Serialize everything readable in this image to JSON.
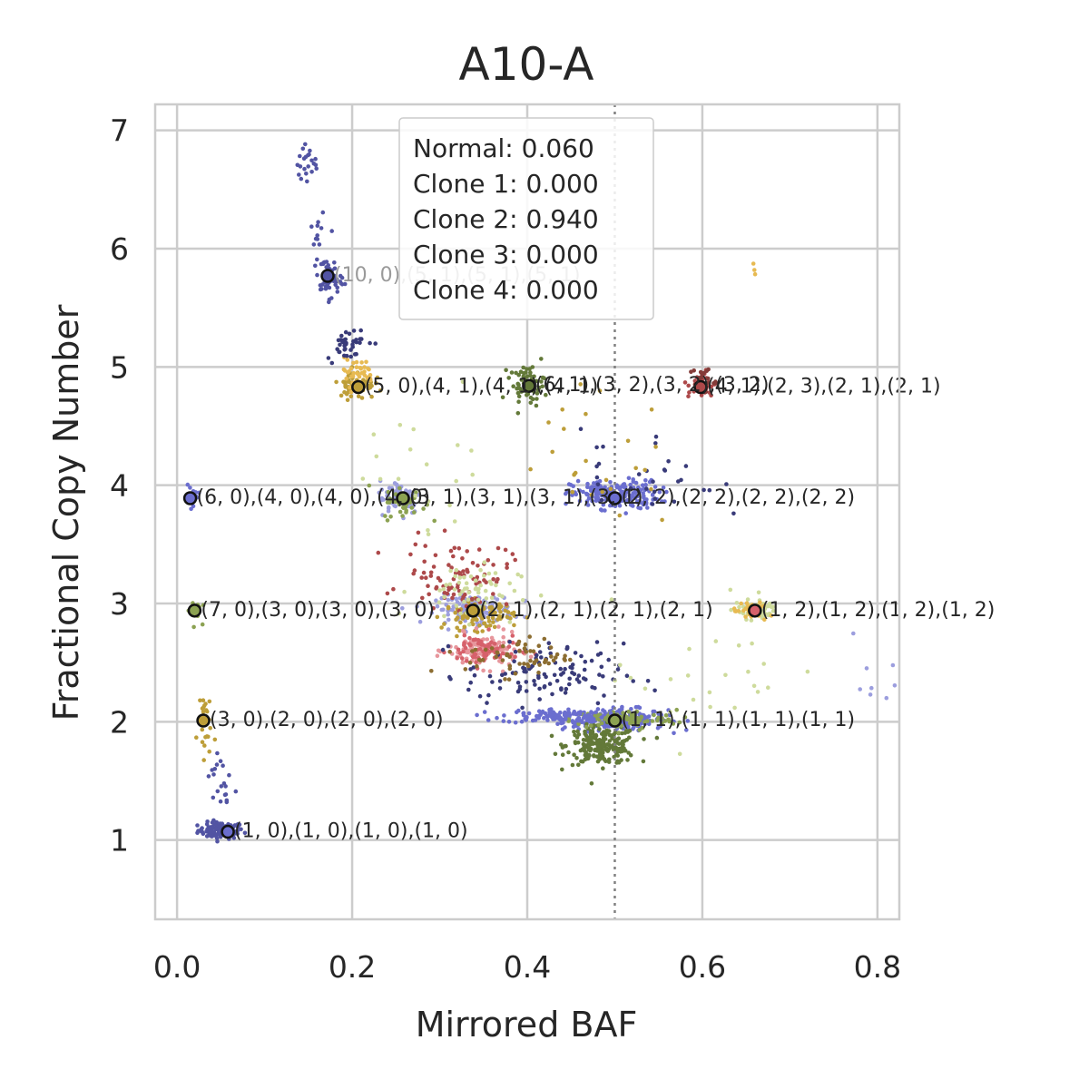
{
  "chart_data": {
    "type": "scatter",
    "title": "A10-A",
    "xlabel": "Mirrored BAF",
    "ylabel": "Fractional Copy Number",
    "xlim": [
      -0.025,
      0.825
    ],
    "ylim": [
      0.33,
      7.22
    ],
    "xticks": [
      "0.0",
      "0.2",
      "0.4",
      "0.6",
      "0.8"
    ],
    "yticks": [
      "1",
      "2",
      "3",
      "4",
      "5",
      "6",
      "7"
    ],
    "grid": true,
    "vline": 0.5,
    "legend": {
      "placement": "top-center",
      "lines": [
        "Normal: 0.060",
        "Clone 1: 0.000",
        "Clone 2: 0.940",
        "Clone 3: 0.000",
        "Clone 4: 0.000"
      ]
    },
    "clusters": [
      {
        "x": 0.05,
        "y": 1.08,
        "sx": 0.013,
        "sy": 0.035,
        "n": 100,
        "color": "#5254a3"
      },
      {
        "x": 0.5,
        "y": 2.02,
        "sx": 0.03,
        "sy": 0.045,
        "n": 240,
        "color": "#6b6ecf"
      },
      {
        "x": 0.485,
        "y": 1.8,
        "sx": 0.02,
        "sy": 0.08,
        "n": 220,
        "color": "#637939"
      },
      {
        "x": 0.51,
        "y": 2.02,
        "sx": 0.03,
        "sy": 0.04,
        "n": 100,
        "color": "#8ca252"
      },
      {
        "x": 0.43,
        "y": 2.05,
        "sx": 0.03,
        "sy": 0.03,
        "n": 90,
        "color": "#6b6ecf"
      },
      {
        "x": 0.5,
        "y": 3.92,
        "sx": 0.025,
        "sy": 0.06,
        "n": 200,
        "color": "#6b6ecf"
      },
      {
        "x": 0.34,
        "y": 2.95,
        "sx": 0.022,
        "sy": 0.06,
        "n": 140,
        "color": "#9c9ede"
      },
      {
        "x": 0.345,
        "y": 2.9,
        "sx": 0.02,
        "sy": 0.06,
        "n": 100,
        "color": "#bd9e39"
      },
      {
        "x": 0.35,
        "y": 2.6,
        "sx": 0.02,
        "sy": 0.07,
        "n": 110,
        "color": "#e7969c"
      },
      {
        "x": 0.35,
        "y": 2.6,
        "sx": 0.02,
        "sy": 0.07,
        "n": 70,
        "color": "#d6616b"
      },
      {
        "x": 0.32,
        "y": 3.25,
        "sx": 0.03,
        "sy": 0.14,
        "n": 90,
        "color": "#ad494a"
      },
      {
        "x": 0.33,
        "y": 3.1,
        "sx": 0.03,
        "sy": 0.12,
        "n": 60,
        "color": "#cedb9c"
      },
      {
        "x": 0.42,
        "y": 2.4,
        "sx": 0.045,
        "sy": 0.13,
        "n": 110,
        "color": "#393b79"
      },
      {
        "x": 0.39,
        "y": 2.55,
        "sx": 0.03,
        "sy": 0.08,
        "n": 60,
        "color": "#8c6d31"
      },
      {
        "x": 0.255,
        "y": 3.9,
        "sx": 0.012,
        "sy": 0.07,
        "n": 80,
        "color": "#9c9ede"
      },
      {
        "x": 0.26,
        "y": 3.85,
        "sx": 0.012,
        "sy": 0.07,
        "n": 40,
        "color": "#8ca252"
      },
      {
        "x": 0.205,
        "y": 4.85,
        "sx": 0.01,
        "sy": 0.06,
        "n": 70,
        "color": "#bd9e39"
      },
      {
        "x": 0.205,
        "y": 4.95,
        "sx": 0.01,
        "sy": 0.06,
        "n": 40,
        "color": "#e7ba52"
      },
      {
        "x": 0.195,
        "y": 5.2,
        "sx": 0.012,
        "sy": 0.07,
        "n": 40,
        "color": "#393b79"
      },
      {
        "x": 0.4,
        "y": 4.85,
        "sx": 0.01,
        "sy": 0.08,
        "n": 60,
        "color": "#637939"
      },
      {
        "x": 0.6,
        "y": 4.85,
        "sx": 0.008,
        "sy": 0.06,
        "n": 35,
        "color": "#ad494a"
      },
      {
        "x": 0.6,
        "y": 4.9,
        "sx": 0.008,
        "sy": 0.06,
        "n": 20,
        "color": "#843c39"
      },
      {
        "x": 0.172,
        "y": 5.75,
        "sx": 0.008,
        "sy": 0.08,
        "n": 50,
        "color": "#5254a3"
      },
      {
        "x": 0.15,
        "y": 6.7,
        "sx": 0.006,
        "sy": 0.08,
        "n": 22,
        "color": "#5254a3"
      },
      {
        "x": 0.16,
        "y": 6.2,
        "sx": 0.006,
        "sy": 0.12,
        "n": 10,
        "color": "#5254a3"
      },
      {
        "x": 0.018,
        "y": 3.9,
        "sx": 0.004,
        "sy": 0.08,
        "n": 15,
        "color": "#6b6ecf"
      },
      {
        "x": 0.02,
        "y": 2.95,
        "sx": 0.004,
        "sy": 0.05,
        "n": 20,
        "color": "#8ca252"
      },
      {
        "x": 0.03,
        "y": 2.0,
        "sx": 0.004,
        "sy": 0.15,
        "n": 25,
        "color": "#bd9e39"
      },
      {
        "x": 0.05,
        "y": 1.5,
        "sx": 0.01,
        "sy": 0.15,
        "n": 20,
        "color": "#5254a3"
      },
      {
        "x": 0.66,
        "y": 2.95,
        "sx": 0.012,
        "sy": 0.04,
        "n": 60,
        "color": "#cedb9c"
      },
      {
        "x": 0.655,
        "y": 2.93,
        "sx": 0.01,
        "sy": 0.04,
        "n": 30,
        "color": "#e7ba52"
      },
      {
        "x": 0.6,
        "y": 2.4,
        "sx": 0.05,
        "sy": 0.3,
        "n": 25,
        "color": "#cedb9c"
      },
      {
        "x": 0.54,
        "y": 4.1,
        "sx": 0.04,
        "sy": 0.2,
        "n": 30,
        "color": "#393b79"
      },
      {
        "x": 0.47,
        "y": 4.2,
        "sx": 0.05,
        "sy": 0.3,
        "n": 25,
        "color": "#bd9e39"
      },
      {
        "x": 0.3,
        "y": 4.2,
        "sx": 0.04,
        "sy": 0.3,
        "n": 20,
        "color": "#cedb9c"
      },
      {
        "x": 0.66,
        "y": 5.85,
        "sx": 0.002,
        "sy": 0.06,
        "n": 3,
        "color": "#e7ba52"
      },
      {
        "x": 0.8,
        "y": 2.3,
        "sx": 0.02,
        "sy": 0.3,
        "n": 10,
        "color": "#9c9ede"
      }
    ],
    "markers": [
      {
        "x": 0.172,
        "y": 5.77,
        "color": "#5254a3",
        "label": "(10, 0),(5, 1),(5, 1),(5, 1)",
        "label_color": "#9a9a9a"
      },
      {
        "x": 0.207,
        "y": 4.83,
        "color": "#bd9e39",
        "label": "(5, 0),(4, 1),(4, 1),(4, 1)",
        "label_color": "#262626"
      },
      {
        "x": 0.402,
        "y": 4.84,
        "color": "#637939",
        "label": "(6, 1),(3, 2),(3, 2),(3, 2)",
        "label_color": "#262626"
      },
      {
        "x": 0.598,
        "y": 4.83,
        "color": "#ad494a",
        "label": "(4, 1),(2, 3),(2, 1),(2, 1)",
        "label_color": "#262626"
      },
      {
        "x": 0.015,
        "y": 3.89,
        "color": "#6b6ecf",
        "label": "(6, 0),(4, 0),(4, 0),(4, 0)",
        "label_color": "#262626"
      },
      {
        "x": 0.258,
        "y": 3.89,
        "color": "#8ca252",
        "label": "(3, 1),(3, 1),(3, 1),(3, 1)",
        "label_color": "#262626"
      },
      {
        "x": 0.5,
        "y": 3.89,
        "color": "#6b6ecf",
        "label": "(2, 2),(2, 2),(2, 2),(2, 2)",
        "label_color": "#262626"
      },
      {
        "x": 0.02,
        "y": 2.94,
        "color": "#8ca252",
        "label": "(7, 0),(3, 0),(3, 0),(3, 0)",
        "label_color": "#262626"
      },
      {
        "x": 0.338,
        "y": 2.94,
        "color": "#bd9e39",
        "label": "(2, 1),(2, 1),(2, 1),(2, 1)",
        "label_color": "#262626"
      },
      {
        "x": 0.66,
        "y": 2.94,
        "color": "#d6616b",
        "label": "(1, 2),(1, 2),(1, 2),(1, 2)",
        "label_color": "#262626"
      },
      {
        "x": 0.03,
        "y": 2.01,
        "color": "#bd9e39",
        "label": "(3, 0),(2, 0),(2, 0),(2, 0)",
        "label_color": "#262626"
      },
      {
        "x": 0.5,
        "y": 2.01,
        "color": "#8ca252",
        "label": "(1, 1),(1, 1),(1, 1),(1, 1)",
        "label_color": "#262626"
      },
      {
        "x": 0.058,
        "y": 1.07,
        "color": "#6b6ecf",
        "label": "(1, 0),(1, 0),(1, 0),(1, 0)",
        "label_color": "#262626"
      }
    ]
  }
}
